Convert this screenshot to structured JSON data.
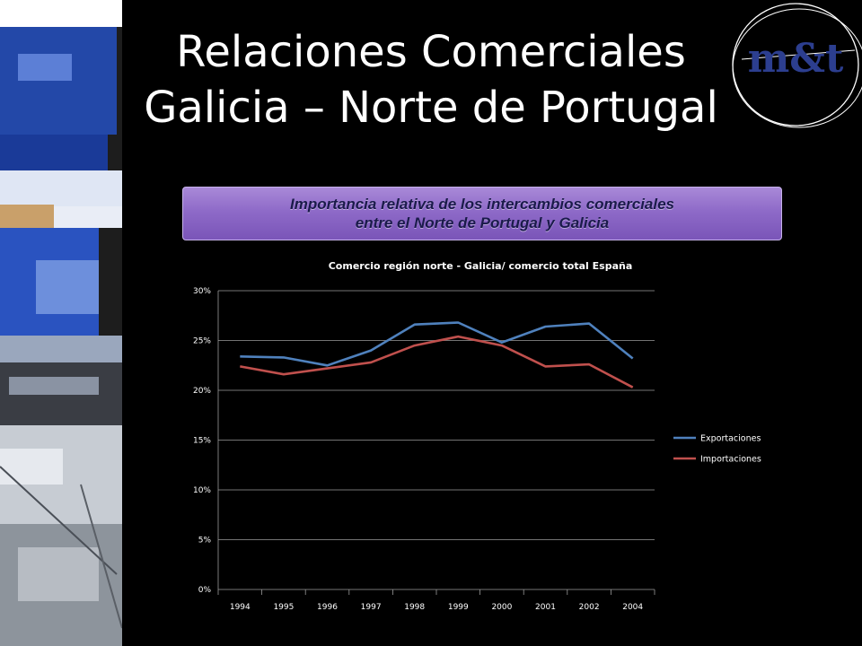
{
  "slide": {
    "title_line1": "Relaciones Comerciales",
    "title_line2": "Galicia – Norte de Portugal",
    "banner_line1": "Importancia relativa de los intercambios comerciales",
    "banner_line2": "entre el Norte de Portugal y Galicia",
    "logo_text": "m&t"
  },
  "colors": {
    "background": "#000000",
    "exportaciones": "#4f81bd",
    "importaciones": "#c0504d",
    "banner": "#8e6ac8"
  },
  "chart_data": {
    "type": "line",
    "title": "Comercio región norte  - Galicia/ comercio total España",
    "xlabel": "",
    "ylabel": "",
    "categories": [
      "1994",
      "1995",
      "1996",
      "1997",
      "1998",
      "1999",
      "2000",
      "2001",
      "2002",
      "2004"
    ],
    "series": [
      {
        "name": "Exportaciones",
        "color": "#4f81bd",
        "values": [
          0.234,
          0.233,
          0.225,
          0.24,
          0.266,
          0.268,
          0.248,
          0.264,
          0.267,
          0.232
        ]
      },
      {
        "name": "Importaciones",
        "color": "#c0504d",
        "values": [
          0.224,
          0.216,
          0.222,
          0.228,
          0.245,
          0.254,
          0.245,
          0.224,
          0.226,
          0.203
        ]
      }
    ],
    "ylim": [
      0,
      0.3
    ],
    "yticks": [
      0,
      0.05,
      0.1,
      0.15,
      0.2,
      0.25,
      0.3
    ],
    "ytick_labels": [
      "0%",
      "5%",
      "10%",
      "15%",
      "20%",
      "25%",
      "30%"
    ],
    "grid": true,
    "legend_position": "right"
  }
}
